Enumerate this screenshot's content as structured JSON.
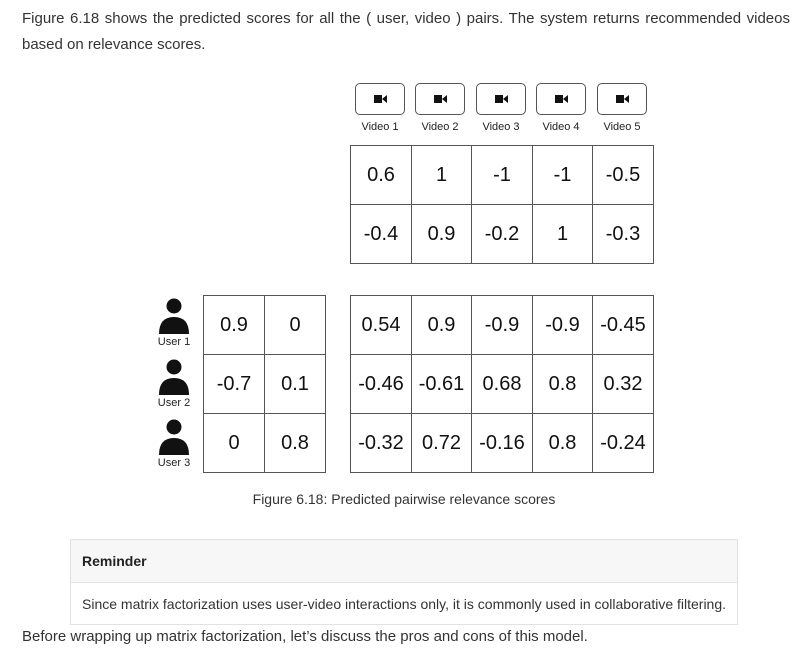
{
  "intro": "Figure 6.18 shows the predicted scores for all the ( user, video ) pairs. The system returns recommended videos based on relevance scores.",
  "figure": {
    "videos": [
      {
        "label": "Video 1",
        "icon": "video-camera-icon"
      },
      {
        "label": "Video 2",
        "icon": "video-camera-icon"
      },
      {
        "label": "Video 3",
        "icon": "video-camera-icon"
      },
      {
        "label": "Video 4",
        "icon": "video-camera-icon"
      },
      {
        "label": "Video 5",
        "icon": "video-camera-icon"
      }
    ],
    "video_matrix": [
      [
        "0.6",
        "1",
        "-1",
        "-1",
        "-0.5"
      ],
      [
        "-0.4",
        "0.9",
        "-0.2",
        "1",
        "-0.3"
      ]
    ],
    "users": [
      {
        "label": "User 1",
        "icon": "user-icon"
      },
      {
        "label": "User 2",
        "icon": "user-icon"
      },
      {
        "label": "User 3",
        "icon": "user-icon"
      }
    ],
    "user_matrix": [
      [
        "0.9",
        "0"
      ],
      [
        "-0.7",
        "0.1"
      ],
      [
        "0",
        "0.8"
      ]
    ],
    "score_matrix": [
      [
        "0.54",
        "0.9",
        "-0.9",
        "-0.9",
        "-0.45"
      ],
      [
        "-0.46",
        "-0.61",
        "0.68",
        "0.8",
        "0.32"
      ],
      [
        "-0.32",
        "0.72",
        "-0.16",
        "0.8",
        "-0.24"
      ]
    ],
    "caption": "Figure 6.18: Predicted pairwise relevance scores"
  },
  "reminder": {
    "title": "Reminder",
    "body": "Since matrix factorization uses user-video interactions only, it is commonly used in collaborative filtering."
  },
  "outro": "Before wrapping up matrix factorization, let’s discuss the pros and cons of this model."
}
